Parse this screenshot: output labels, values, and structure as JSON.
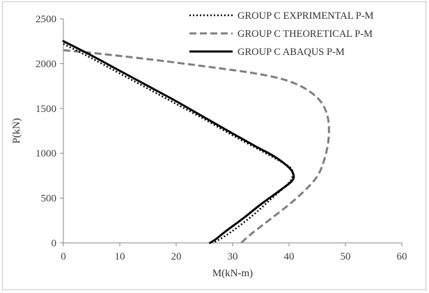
{
  "chart_data": {
    "type": "line",
    "title": "",
    "xlabel": "M(kN-m)",
    "ylabel": "P(kN)",
    "xlim": [
      0,
      60
    ],
    "ylim": [
      0,
      2500
    ],
    "xticks": [
      0,
      10,
      20,
      30,
      40,
      50,
      60
    ],
    "yticks": [
      0,
      500,
      1000,
      1500,
      2000,
      2500
    ],
    "grid": false,
    "legend_position": "top-right",
    "series": [
      {
        "name": "GROUP C EXPRIMENTAL P-M",
        "style": "dotted",
        "color": "#000000",
        "points": [
          [
            0,
            2220
          ],
          [
            5,
            2060
          ],
          [
            10,
            1890
          ],
          [
            15,
            1720
          ],
          [
            20,
            1550
          ],
          [
            25,
            1380
          ],
          [
            30,
            1200
          ],
          [
            35,
            1030
          ],
          [
            39,
            890
          ],
          [
            40.5,
            820
          ],
          [
            40.5,
            720
          ],
          [
            39.5,
            640
          ],
          [
            37,
            500
          ],
          [
            34,
            330
          ],
          [
            31,
            180
          ],
          [
            28.5,
            70
          ],
          [
            26.5,
            0
          ]
        ]
      },
      {
        "name": "GROUP C THEORETICAL  P-M",
        "style": "dashed",
        "color": "#7f7f7f",
        "points": [
          [
            0,
            2150
          ],
          [
            5,
            2120
          ],
          [
            15,
            2050
          ],
          [
            25,
            1970
          ],
          [
            35,
            1880
          ],
          [
            41,
            1780
          ],
          [
            45,
            1620
          ],
          [
            46.8,
            1420
          ],
          [
            47,
            1150
          ],
          [
            46,
            880
          ],
          [
            44.5,
            700
          ],
          [
            41,
            480
          ],
          [
            37,
            280
          ],
          [
            33.5,
            110
          ],
          [
            31.5,
            0
          ]
        ]
      },
      {
        "name": "GROUP C ABAQUS P-M",
        "style": "solid",
        "color": "#000000",
        "points": [
          [
            0,
            2250
          ],
          [
            5,
            2090
          ],
          [
            10,
            1920
          ],
          [
            15,
            1750
          ],
          [
            20,
            1580
          ],
          [
            25,
            1400
          ],
          [
            30,
            1220
          ],
          [
            34,
            1080
          ],
          [
            37.5,
            960
          ],
          [
            40,
            840
          ],
          [
            40.8,
            760
          ],
          [
            40.5,
            690
          ],
          [
            38.5,
            590
          ],
          [
            35,
            430
          ],
          [
            32,
            280
          ],
          [
            29,
            140
          ],
          [
            27,
            40
          ],
          [
            26,
            0
          ]
        ]
      }
    ]
  }
}
